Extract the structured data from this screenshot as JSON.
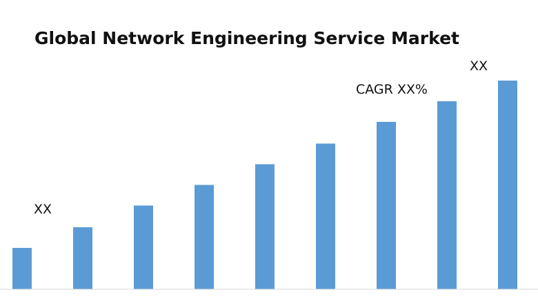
{
  "chart_data": {
    "type": "bar",
    "title": "Global Network Engineering Service Market",
    "categories": [
      "",
      "",
      "",
      "",
      "",
      "",
      "",
      "",
      ""
    ],
    "values": [
      20,
      30,
      40.5,
      50.5,
      60.5,
      70.5,
      81,
      91,
      101
    ],
    "ylim": [
      0,
      140
    ],
    "grid": false,
    "legend": "none",
    "bar_color": "#5b9bd5",
    "annotations": {
      "start_value": "XX",
      "cagr": "CAGR XX%",
      "end_value": "XX"
    }
  }
}
